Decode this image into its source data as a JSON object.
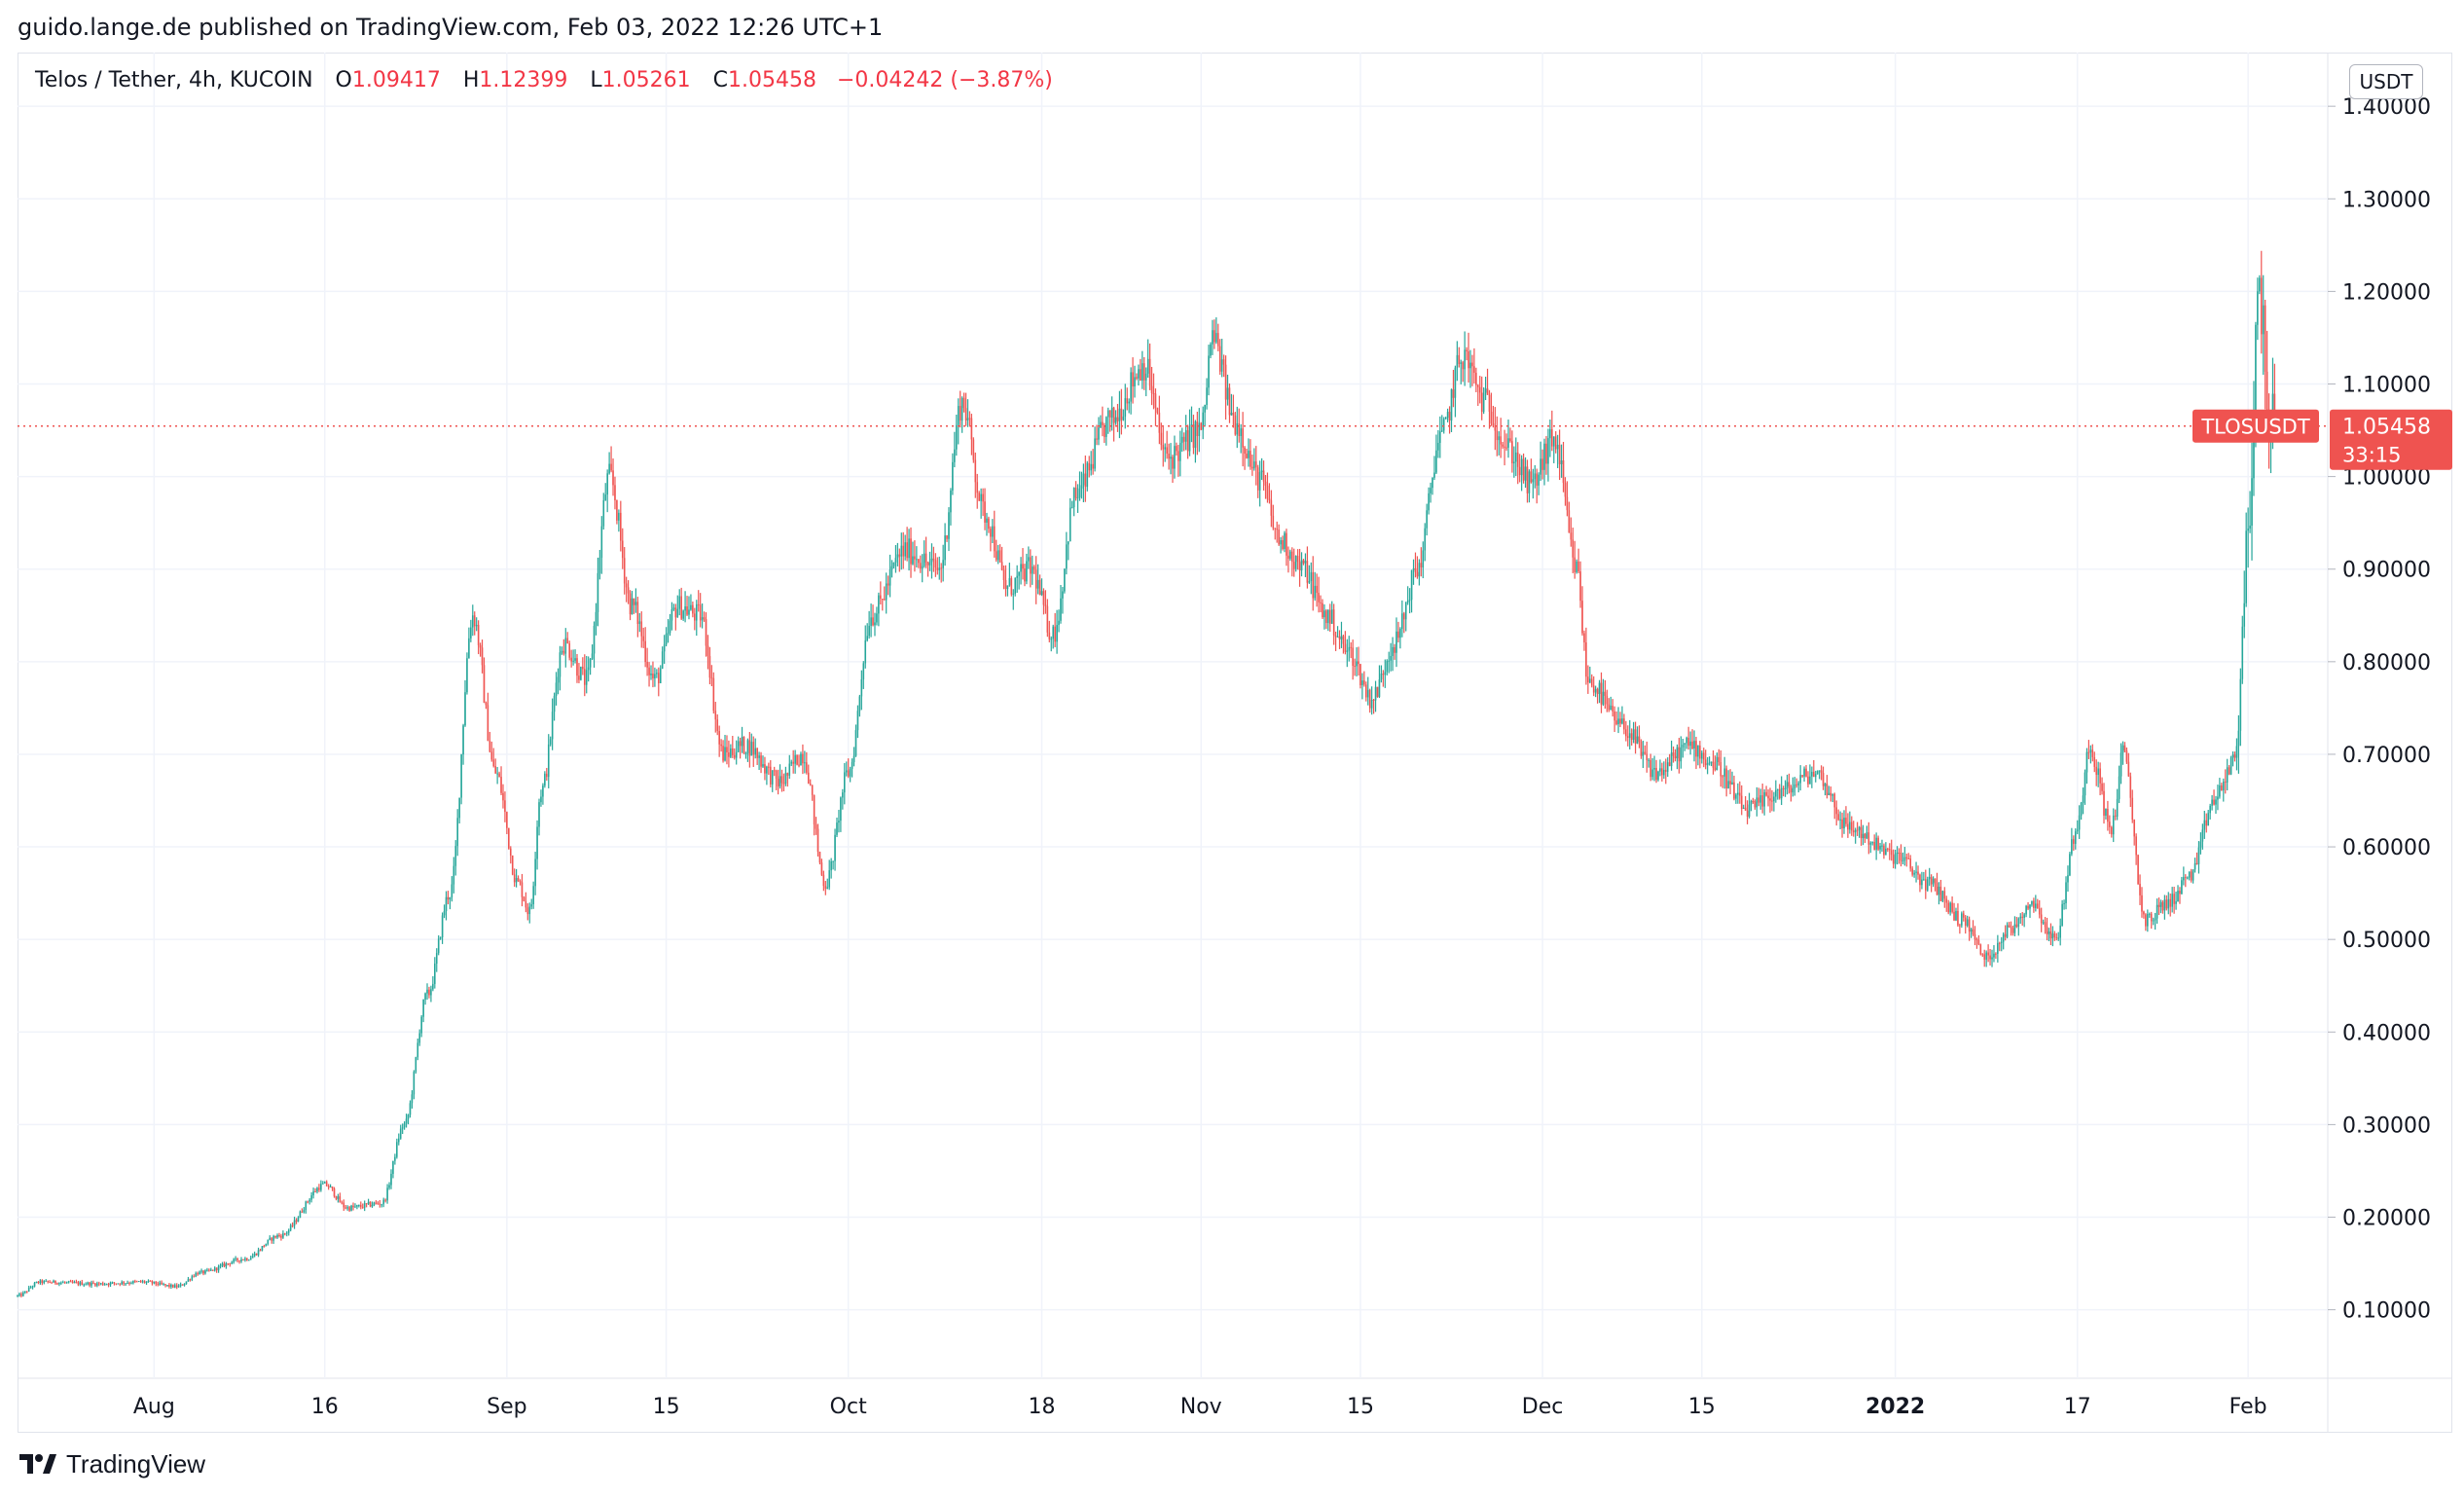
{
  "caption": "guido.lange.de published on TradingView.com, Feb 03, 2022 12:26 UTC+1",
  "legend": {
    "symbol_line": "Telos / Tether, 4h, KUCOIN",
    "o_label": "O",
    "o_value": "1.09417",
    "h_label": "H",
    "h_value": "1.12399",
    "l_label": "L",
    "l_value": "1.05261",
    "c_label": "C",
    "c_value": "1.05458",
    "change": "−0.04242 (−3.87%)"
  },
  "currency": "USDT",
  "price_tag": {
    "symbol": "TLOSUSDT",
    "price": "1.05458",
    "countdown": "33:15"
  },
  "footer": {
    "brand": "TradingView"
  },
  "colors": {
    "up": "#26a69a",
    "down": "#ef5350",
    "grid": "#f0f3fa",
    "text": "#131722"
  },
  "chart_data": {
    "type": "candlestick",
    "y_axis": {
      "ticks": [
        "1.40000",
        "1.30000",
        "1.20000",
        "1.10000",
        "1.00000",
        "0.90000",
        "0.80000",
        "0.70000",
        "0.60000",
        "0.50000",
        "0.40000",
        "0.30000",
        "0.20000",
        "0.10000"
      ],
      "tick_values": [
        1.4,
        1.3,
        1.2,
        1.1,
        1.0,
        0.9,
        0.8,
        0.7,
        0.6,
        0.5,
        0.4,
        0.3,
        0.2,
        0.1
      ],
      "range": [
        0.026,
        1.458
      ]
    },
    "x_axis": {
      "labels": [
        {
          "text": "Aug",
          "date": "2021-08-01",
          "bold": false
        },
        {
          "text": "16",
          "date": "2021-08-16",
          "bold": false
        },
        {
          "text": "Sep",
          "date": "2021-09-01",
          "bold": false
        },
        {
          "text": "15",
          "date": "2021-09-15",
          "bold": false
        },
        {
          "text": "Oct",
          "date": "2021-10-01",
          "bold": false
        },
        {
          "text": "18",
          "date": "2021-10-18",
          "bold": false
        },
        {
          "text": "Nov",
          "date": "2021-11-01",
          "bold": false
        },
        {
          "text": "15",
          "date": "2021-11-15",
          "bold": false
        },
        {
          "text": "Dec",
          "date": "2021-12-01",
          "bold": false
        },
        {
          "text": "15",
          "date": "2021-12-15",
          "bold": false
        },
        {
          "text": "2022",
          "date": "2022-01-01",
          "bold": true
        },
        {
          "text": "17",
          "date": "2022-01-17",
          "bold": false
        },
        {
          "text": "Feb",
          "date": "2022-02-01",
          "bold": false
        }
      ],
      "range": [
        "2021-07-20",
        "2022-02-08"
      ]
    },
    "last_price": 1.05458,
    "price_anchors": [
      [
        "2021-07-20",
        0.115
      ],
      [
        "2021-07-22",
        0.13
      ],
      [
        "2021-07-27",
        0.128
      ],
      [
        "2021-07-31",
        0.13
      ],
      [
        "2021-08-03",
        0.125
      ],
      [
        "2021-08-05",
        0.14
      ],
      [
        "2021-08-09",
        0.155
      ],
      [
        "2021-08-12",
        0.18
      ],
      [
        "2021-08-16",
        0.235
      ],
      [
        "2021-08-18",
        0.21
      ],
      [
        "2021-08-21",
        0.215
      ],
      [
        "2021-08-23",
        0.3
      ],
      [
        "2021-08-25",
        0.44
      ],
      [
        "2021-08-27",
        0.55
      ],
      [
        "2021-08-29",
        0.85
      ],
      [
        "2021-08-31",
        0.68
      ],
      [
        "2021-09-02",
        0.56
      ],
      [
        "2021-09-03",
        0.53
      ],
      [
        "2021-09-04",
        0.66
      ],
      [
        "2021-09-06",
        0.82
      ],
      [
        "2021-09-08",
        0.78
      ],
      [
        "2021-09-10",
        1.0
      ],
      [
        "2021-09-12",
        0.86
      ],
      [
        "2021-09-14",
        0.78
      ],
      [
        "2021-09-16",
        0.86
      ],
      [
        "2021-09-18",
        0.85
      ],
      [
        "2021-09-20",
        0.7
      ],
      [
        "2021-09-22",
        0.71
      ],
      [
        "2021-09-25",
        0.67
      ],
      [
        "2021-09-27",
        0.7
      ],
      [
        "2021-09-29",
        0.56
      ],
      [
        "2021-10-01",
        0.68
      ],
      [
        "2021-10-03",
        0.85
      ],
      [
        "2021-10-06",
        0.92
      ],
      [
        "2021-10-09",
        0.9
      ],
      [
        "2021-10-11",
        1.08
      ],
      [
        "2021-10-13",
        0.96
      ],
      [
        "2021-10-15",
        0.88
      ],
      [
        "2021-10-17",
        0.9
      ],
      [
        "2021-10-19",
        0.83
      ],
      [
        "2021-10-21",
        0.98
      ],
      [
        "2021-10-24",
        1.06
      ],
      [
        "2021-10-27",
        1.12
      ],
      [
        "2021-10-29",
        1.02
      ],
      [
        "2021-11-01",
        1.05
      ],
      [
        "2021-11-02",
        1.15
      ],
      [
        "2021-11-04",
        1.06
      ],
      [
        "2021-11-06",
        1.0
      ],
      [
        "2021-11-08",
        0.93
      ],
      [
        "2021-11-10",
        0.9
      ],
      [
        "2021-11-12",
        0.85
      ],
      [
        "2021-11-14",
        0.81
      ],
      [
        "2021-11-16",
        0.76
      ],
      [
        "2021-11-18",
        0.82
      ],
      [
        "2021-11-20",
        0.9
      ],
      [
        "2021-11-22",
        1.04
      ],
      [
        "2021-11-24",
        1.13
      ],
      [
        "2021-11-26",
        1.08
      ],
      [
        "2021-11-28",
        1.03
      ],
      [
        "2021-11-30",
        0.99
      ],
      [
        "2021-12-02",
        1.04
      ],
      [
        "2021-12-04",
        0.9
      ],
      [
        "2021-12-05",
        0.78
      ],
      [
        "2021-12-08",
        0.73
      ],
      [
        "2021-12-11",
        0.68
      ],
      [
        "2021-12-14",
        0.71
      ],
      [
        "2021-12-16",
        0.69
      ],
      [
        "2021-12-19",
        0.64
      ],
      [
        "2021-12-22",
        0.66
      ],
      [
        "2021-12-25",
        0.68
      ],
      [
        "2021-12-28",
        0.62
      ],
      [
        "2022-01-01",
        0.59
      ],
      [
        "2022-01-04",
        0.56
      ],
      [
        "2022-01-07",
        0.52
      ],
      [
        "2022-01-09",
        0.48
      ],
      [
        "2022-01-11",
        0.51
      ],
      [
        "2022-01-13",
        0.54
      ],
      [
        "2022-01-15",
        0.5
      ],
      [
        "2022-01-17",
        0.62
      ],
      [
        "2022-01-18",
        0.71
      ],
      [
        "2022-01-20",
        0.62
      ],
      [
        "2022-01-21",
        0.7
      ],
      [
        "2022-01-23",
        0.52
      ],
      [
        "2022-01-25",
        0.54
      ],
      [
        "2022-01-27",
        0.57
      ],
      [
        "2022-01-29",
        0.65
      ],
      [
        "2022-01-31",
        0.7
      ],
      [
        "2022-02-01",
        0.95
      ],
      [
        "2022-02-02",
        1.2
      ],
      [
        "2022-02-03",
        1.055
      ]
    ]
  }
}
